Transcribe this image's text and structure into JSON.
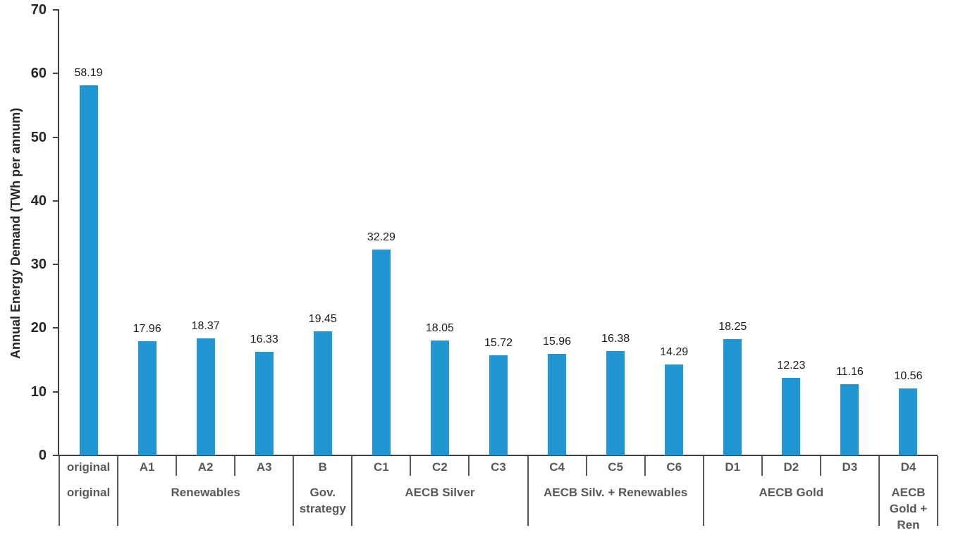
{
  "chart_data": {
    "type": "bar",
    "title": "",
    "xlabel": "",
    "ylabel": "Annual Energy Demand (TWh per annum)",
    "ylim": [
      0,
      70
    ],
    "yticks": [
      0,
      10,
      20,
      30,
      40,
      50,
      60,
      70
    ],
    "grid": false,
    "legend": null,
    "categories": [
      "original",
      "A1",
      "A2",
      "A3",
      "B",
      "C1",
      "C2",
      "C3",
      "C4",
      "C5",
      "C6",
      "D1",
      "D2",
      "D3",
      "D4"
    ],
    "values": [
      58.19,
      17.96,
      18.37,
      16.33,
      19.45,
      32.29,
      18.05,
      15.72,
      15.96,
      16.38,
      14.29,
      18.25,
      12.23,
      11.16,
      10.56
    ],
    "value_labels": [
      "58.19",
      "17.96",
      "18.37",
      "16.33",
      "19.45",
      "32.29",
      "18.05",
      "15.72",
      "15.96",
      "16.38",
      "14.29",
      "18.25",
      "12.23",
      "11.16",
      "10.56"
    ],
    "groups": [
      {
        "label": "original",
        "span": 1
      },
      {
        "label": "Renewables",
        "span": 3
      },
      {
        "label": "Gov.\nstrategy",
        "span": 1
      },
      {
        "label": "AECB Silver",
        "span": 3
      },
      {
        "label": "AECB Silv. + Renewables",
        "span": 3
      },
      {
        "label": "AECB Gold",
        "span": 3
      },
      {
        "label": "AECB\nGold +\nRen",
        "span": 1
      }
    ]
  },
  "colors": {
    "bar": "#2097d3",
    "axis_line": "#404040",
    "table_line": "#595959",
    "tick_text": "#262626",
    "value_text": "#1a1a1a",
    "table_text": "#595959",
    "background": "#ffffff"
  }
}
